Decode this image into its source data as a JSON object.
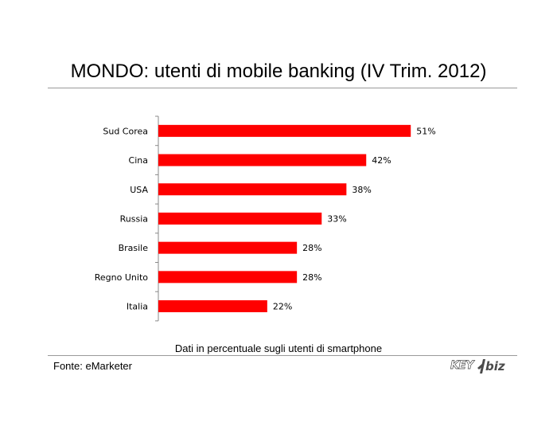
{
  "page": {
    "subtitle": "Dati in percentuale sugli utenti di smartphone",
    "source": "Fonte: eMarketer",
    "logo": {
      "key_text": "KEY",
      "biz_text": "biz",
      "color": "#4b4b4b"
    }
  },
  "chart_data": {
    "type": "bar",
    "orientation": "horizontal",
    "title": "MONDO: utenti di mobile banking (IV Trim. 2012)",
    "categories": [
      "Sud Corea",
      "Cina",
      "USA",
      "Russia",
      "Brasile",
      "Regno Unito",
      "Italia"
    ],
    "values": [
      51,
      42,
      38,
      33,
      28,
      28,
      22
    ],
    "value_labels": [
      "51%",
      "42%",
      "38%",
      "33%",
      "28%",
      "28%",
      "22%"
    ],
    "unit": "%",
    "xlim": [
      0,
      100
    ],
    "grid": false,
    "legend": "none",
    "bar_color": "#ff0000",
    "axis_color": "#888888"
  }
}
